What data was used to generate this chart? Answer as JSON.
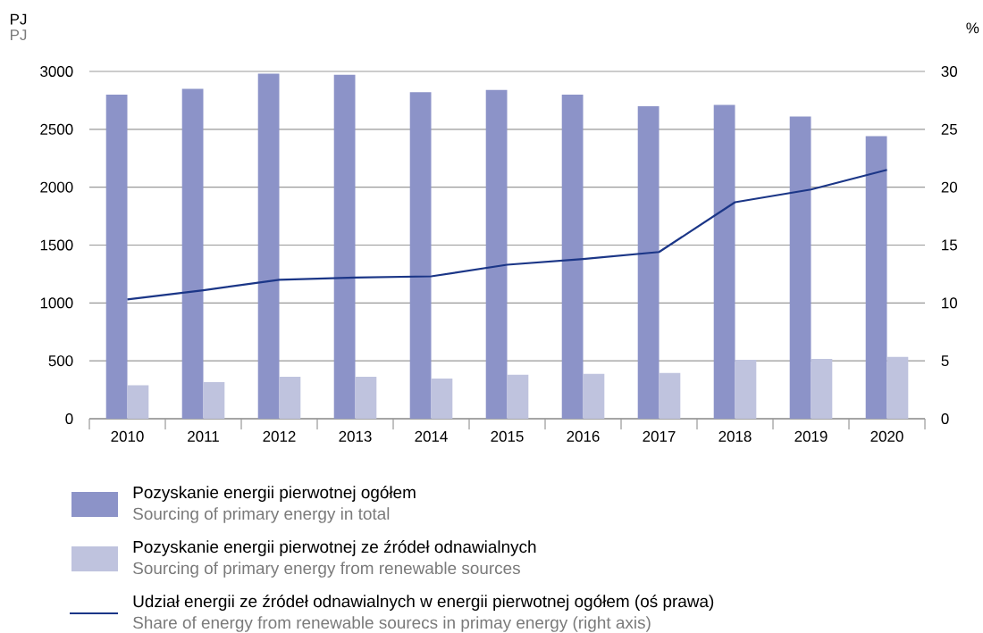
{
  "chart_data": {
    "type": "bar",
    "categories": [
      "2010",
      "2011",
      "2012",
      "2013",
      "2014",
      "2015",
      "2016",
      "2017",
      "2018",
      "2019",
      "2020"
    ],
    "series": [
      {
        "name": "Pozyskanie energii pierwotnej ogółem",
        "color": "#8c93c8",
        "values": [
          2800,
          2850,
          2980,
          2970,
          2820,
          2840,
          2800,
          2700,
          2710,
          2610,
          2440
        ]
      },
      {
        "name": "Pozyskanie energii pierwotnej ze źródeł odnawialnych",
        "color": "#bfc3de",
        "values": [
          290,
          316,
          362,
          362,
          347,
          379,
          387,
          395,
          509,
          517,
          533
        ]
      },
      {
        "name": "Udział energii ze źródeł odnawialnych w energii pierwotnej ogółem (oś prawa)",
        "type": "line",
        "axis": "y2",
        "color": "#1b3687",
        "values": [
          10.3,
          11.1,
          12.0,
          12.2,
          12.3,
          13.3,
          13.8,
          14.4,
          18.7,
          19.8,
          21.5
        ]
      }
    ],
    "ylabel": "PJ",
    "y2label": "%",
    "ylim": [
      0,
      3000
    ],
    "yticks": [
      0,
      500,
      1000,
      1500,
      2000,
      2500,
      3000
    ],
    "y2lim": [
      0,
      30
    ],
    "y2ticks": [
      0,
      5,
      10,
      15,
      20,
      25,
      30
    ],
    "grid": "y",
    "legend": "bottom",
    "annotations": [
      "PJ",
      "Sourcing of primary energy in total",
      "Sourcing of primary energy from renewable sources",
      "Share of energy from renewable sourecs in primay energy (right axis)"
    ]
  }
}
